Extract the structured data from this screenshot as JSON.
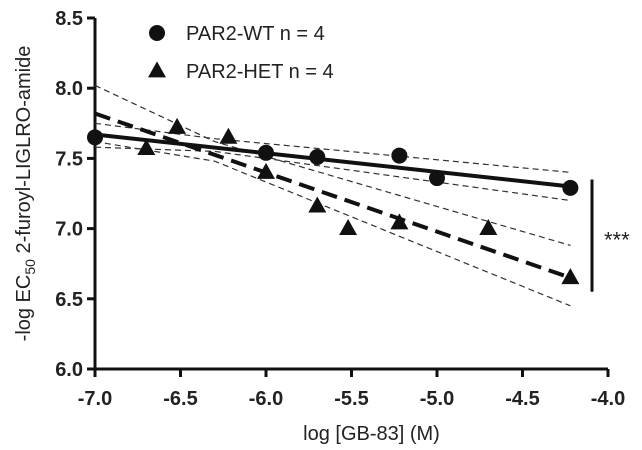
{
  "chart_data": {
    "type": "scatter",
    "title": "",
    "xlabel": "log [GB-83] (M)",
    "ylabel_parts": {
      "prefix": "-log EC",
      "subscript": "50",
      "suffix": " 2-furoyl-LIGLRO-amide"
    },
    "xlim": [
      -7.0,
      -4.0
    ],
    "ylim": [
      6.0,
      8.5
    ],
    "x_ticks": [
      "-7.0",
      "-6.5",
      "-6.0",
      "-5.5",
      "-5.0",
      "-4.5",
      "-4.0"
    ],
    "y_ticks": [
      "6.0",
      "6.5",
      "7.0",
      "7.5",
      "8.0",
      "8.5"
    ],
    "legend_position": "top-left",
    "significance": {
      "label": "***",
      "y_range": [
        6.55,
        7.35
      ]
    },
    "series": [
      {
        "name": "PAR2-WT",
        "legend_label": "PAR2-WT  n = 4",
        "marker": "circle",
        "line_style": "solid",
        "points": [
          {
            "x": -7.0,
            "y": 7.65
          },
          {
            "x": -6.0,
            "y": 7.54
          },
          {
            "x": -5.7,
            "y": 7.51
          },
          {
            "x": -5.22,
            "y": 7.52
          },
          {
            "x": -5.0,
            "y": 7.36
          },
          {
            "x": -4.22,
            "y": 7.29
          }
        ],
        "fit": {
          "x": [
            -7.0,
            -4.22
          ],
          "y": [
            7.67,
            7.3
          ]
        },
        "ci_upper": {
          "x": [
            -7.0,
            -6.3,
            -4.22
          ],
          "y": [
            7.75,
            7.64,
            7.4
          ]
        },
        "ci_lower": {
          "x": [
            -7.0,
            -6.3,
            -4.22
          ],
          "y": [
            7.58,
            7.55,
            7.2
          ]
        }
      },
      {
        "name": "PAR2-HET",
        "legend_label": "PAR2-HET n = 4",
        "marker": "triangle",
        "line_style": "dashed",
        "points": [
          {
            "x": -6.7,
            "y": 7.57
          },
          {
            "x": -6.52,
            "y": 7.72
          },
          {
            "x": -6.22,
            "y": 7.65
          },
          {
            "x": -6.0,
            "y": 7.4
          },
          {
            "x": -5.7,
            "y": 7.16
          },
          {
            "x": -5.52,
            "y": 7.0
          },
          {
            "x": -5.22,
            "y": 7.04
          },
          {
            "x": -4.7,
            "y": 7.0
          },
          {
            "x": -4.22,
            "y": 6.65
          }
        ],
        "fit": {
          "x": [
            -7.0,
            -4.22
          ],
          "y": [
            7.82,
            6.65
          ]
        },
        "ci_upper": {
          "x": [
            -7.0,
            -6.3,
            -4.22
          ],
          "y": [
            8.02,
            7.62,
            6.88
          ]
        },
        "ci_lower": {
          "x": [
            -7.0,
            -6.3,
            -4.22
          ],
          "y": [
            7.62,
            7.48,
            6.45
          ]
        }
      }
    ]
  }
}
